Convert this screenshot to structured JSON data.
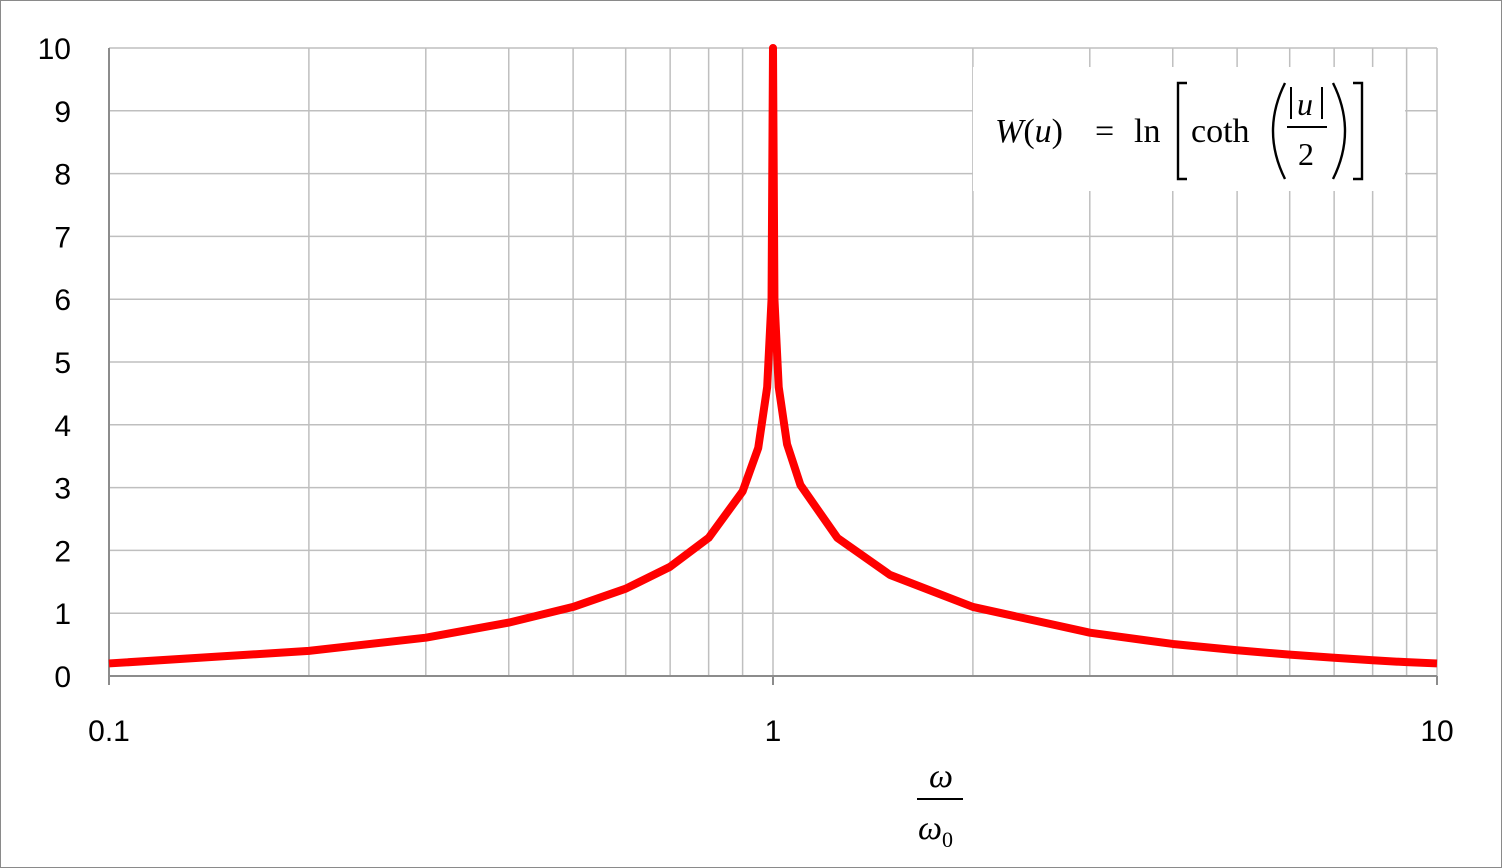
{
  "chart_data": {
    "type": "line",
    "x_scale": "log",
    "xlim": [
      0.1,
      10
    ],
    "ylim": [
      0,
      10
    ],
    "x_ticks": [
      0.1,
      1,
      10
    ],
    "x_tick_labels": [
      "0.1",
      "1",
      "10"
    ],
    "y_ticks": [
      0,
      1,
      2,
      3,
      4,
      5,
      6,
      7,
      8,
      9,
      10
    ],
    "y_tick_labels": [
      "0",
      "1",
      "2",
      "3",
      "4",
      "5",
      "6",
      "7",
      "8",
      "9",
      "10"
    ],
    "grid": "on (log minor gridlines on x)",
    "xlabel": {
      "numerator": "ω",
      "denominator_symbol": "ω",
      "denominator_subscript": "0"
    },
    "annotation": {
      "lhs_func": "W",
      "lhs_var": "u",
      "equals": "=",
      "ln": "ln",
      "coth": "coth",
      "frac_num_var": "u",
      "frac_den": "2"
    },
    "annotation_position": "top-right",
    "series": [
      {
        "color": "#ff0000",
        "x": [
          0.1,
          0.2,
          0.3,
          0.4,
          0.5,
          0.6,
          0.7,
          0.8,
          0.9,
          0.95,
          0.98,
          0.995,
          1.0,
          1.005,
          1.02,
          1.05,
          1.1,
          1.25,
          1.5,
          2,
          3,
          4,
          5,
          6,
          7,
          8,
          9,
          10
        ],
        "y": [
          0.2,
          0.4,
          0.61,
          0.85,
          1.1,
          1.39,
          1.74,
          2.2,
          2.94,
          3.63,
          4.6,
          6.0,
          10.0,
          6.0,
          4.6,
          3.69,
          3.04,
          2.2,
          1.61,
          1.1,
          0.69,
          0.51,
          0.41,
          0.34,
          0.29,
          0.25,
          0.22,
          0.2
        ]
      }
    ]
  }
}
